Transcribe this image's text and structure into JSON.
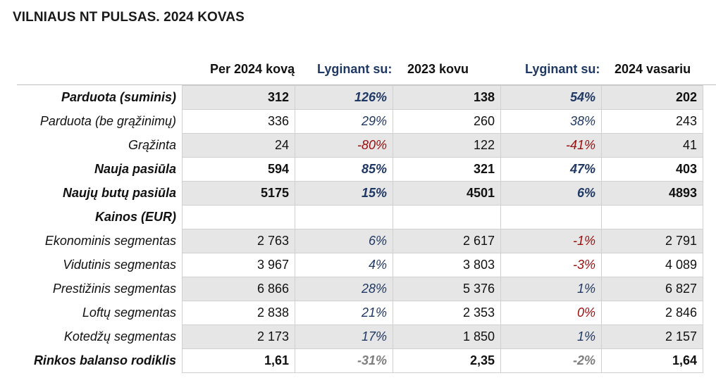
{
  "title": "VILNIAUS NT PULSAS. 2024 KOVAS",
  "header": {
    "col1": "Per 2024 kovą",
    "compare1_label": "Lyginant su:",
    "col3": "2023 kovu",
    "compare2_label": "Lyginant su:",
    "col5": "2024 vasariu"
  },
  "rows": [
    {
      "label": "Parduota (suminis)",
      "v1": "312",
      "p1": "126%",
      "v2": "138",
      "p2": "54%",
      "v3": "202"
    },
    {
      "label": "Parduota (be grąžinimų)",
      "v1": "336",
      "p1": "29%",
      "v2": "260",
      "p2": "38%",
      "v3": "243"
    },
    {
      "label": "Grąžinta",
      "v1": "24",
      "p1": "-80%",
      "v2": "122",
      "p2": "-41%",
      "v3": "41"
    },
    {
      "label": "Nauja pasiūla",
      "v1": "594",
      "p1": "85%",
      "v2": "321",
      "p2": "47%",
      "v3": "403"
    },
    {
      "label": "Naujų butų pasiūla",
      "v1": "5175",
      "p1": "15%",
      "v2": "4501",
      "p2": "6%",
      "v3": "4893"
    },
    {
      "label": "Kainos (EUR)",
      "v1": "",
      "p1": "",
      "v2": "",
      "p2": "",
      "v3": ""
    },
    {
      "label": "Ekonominis segmentas",
      "v1": "2 763",
      "p1": "6%",
      "v2": "2 617",
      "p2": "-1%",
      "v3": "2 791"
    },
    {
      "label": "Vidutinis segmentas",
      "v1": "3 967",
      "p1": "4%",
      "v2": "3 803",
      "p2": "-3%",
      "v3": "4 089"
    },
    {
      "label": "Prestižinis segmentas",
      "v1": "6 866",
      "p1": "28%",
      "v2": "5 376",
      "p2": "1%",
      "v3": "6 827"
    },
    {
      "label": "Loftų segmentas",
      "v1": "2 838",
      "p1": "21%",
      "v2": "2 353",
      "p2": "0%",
      "v3": "2 846"
    },
    {
      "label": "Kotedžų segmentas",
      "v1": "2 173",
      "p1": "17%",
      "v2": "1 850",
      "p2": "1%",
      "v3": "2 157"
    },
    {
      "label": "Rinkos balanso rodiklis",
      "v1": "1,61",
      "p1": "-31%",
      "v2": "2,35",
      "p2": "-2%",
      "v3": "1,64"
    }
  ],
  "colors": {
    "positive_change": "#1f3864",
    "negative_change": "#9b0d0d",
    "neutral_change": "#7f7f7f",
    "row_shade": "#e6e6e6"
  }
}
